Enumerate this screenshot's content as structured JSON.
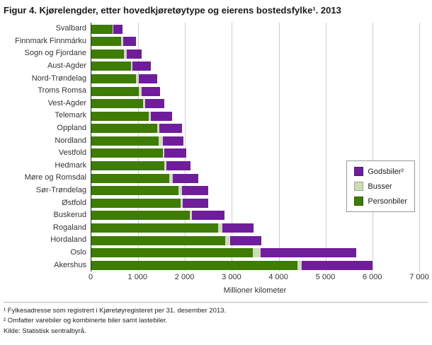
{
  "title": "Figur 4. Kjørelengder, etter hovedkjøretøytype og eierens bostedsfylke¹. 2013",
  "chart_data": {
    "type": "bar",
    "orientation": "horizontal",
    "stacked": true,
    "title": "Figur 4. Kjørelengder, etter hovedkjøretøytype og eierens bostedsfylke¹. 2013",
    "xlabel": "Millioner kilometer",
    "ylabel": "",
    "xlim": [
      0,
      7000
    ],
    "grid": "vertical",
    "legend_position": "right",
    "categories": [
      "Svalbard",
      "Finnmark Finnmárku",
      "Sogn og Fjordane",
      "Aust-Agder",
      "Nord-Trøndelag",
      "Troms Romsa",
      "Vest-Agder",
      "Telemark",
      "Oppland",
      "Nordland",
      "Vestfold",
      "Hedmark",
      "Møre og Romsdal",
      "Sør-Trøndelag",
      "Østfold",
      "Buskerud",
      "Rogaland",
      "Hordaland",
      "Oslo",
      "Akershus"
    ],
    "series": [
      {
        "name": "Personbiler",
        "color": "#3e7c04",
        "values": [
          450,
          640,
          700,
          850,
          960,
          1020,
          1110,
          1220,
          1400,
          1440,
          1520,
          1550,
          1670,
          1860,
          1900,
          2100,
          2710,
          2860,
          3450,
          4400
        ]
      },
      {
        "name": "Busser",
        "color": "#ccddb5",
        "values": [
          20,
          40,
          60,
          30,
          50,
          60,
          40,
          50,
          50,
          80,
          40,
          50,
          70,
          70,
          50,
          50,
          90,
          110,
          160,
          90
        ]
      },
      {
        "name": "Godsbiler²",
        "color": "#701d9b",
        "values": [
          190,
          280,
          320,
          390,
          390,
          390,
          410,
          460,
          480,
          440,
          460,
          510,
          550,
          560,
          550,
          690,
          660,
          660,
          2050,
          1510
        ]
      }
    ],
    "legend_order": [
      "Godsbiler²",
      "Busser",
      "Personbiler"
    ],
    "xticks": {
      "values": [
        0,
        1000,
        2000,
        3000,
        4000,
        5000,
        6000,
        7000
      ],
      "labels": [
        "0",
        "1 000",
        "2 000",
        "3 000",
        "4 000",
        "5 000",
        "6 000",
        "7 000"
      ]
    }
  },
  "footnotes": [
    "¹ Fylkesadresse som registrert i Kjøretøyregisteret per 31. desember 2013.",
    "² Omfatter varebiler og kombinerte biler samt lastebiler.",
    "Kilde: Statistisk sentralbyrå."
  ]
}
